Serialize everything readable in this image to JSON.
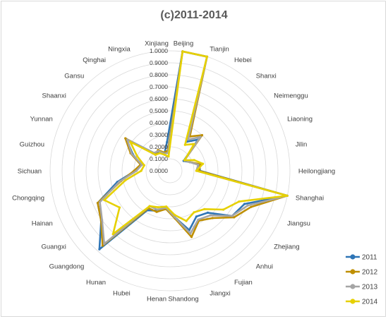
{
  "chart_data": {
    "type": "radar",
    "title": "(c)2011-2014",
    "rlim": [
      0,
      1
    ],
    "ticks": [
      "0.0000",
      "0.1000",
      "0.2000",
      "0.3000",
      "0.4000",
      "0.5000",
      "0.6000",
      "0.7000",
      "0.8000",
      "0.9000",
      "1.0000"
    ],
    "grid": true,
    "legend": "bottom-right",
    "categories": [
      "Beijing",
      "Tianjin",
      "Hebei",
      "Shanxi",
      "Neimenggu",
      "Liaoning",
      "Jilin",
      "Heilongjiang",
      "Shanghai",
      "Jiangsu",
      "Zhejiang",
      "Anhui",
      "Fujian",
      "Jiangxi",
      "Shandong",
      "Henan",
      "Hubei",
      "Hunan",
      "Guangdong",
      "Guangxi",
      "Hainan",
      "Chongqing",
      "Sichuan",
      "Guizhou",
      "Yunnan",
      "Shaanxi",
      "Gansu",
      "Qinghai",
      "Ningxia",
      "Xinjiang"
    ],
    "series": [
      {
        "name": "2011",
        "color": "#2e75b6",
        "values": [
          1.0,
          1.0,
          0.28,
          0.35,
          0.14,
          0.18,
          0.25,
          0.25,
          1.0,
          0.68,
          0.64,
          0.47,
          0.44,
          0.52,
          0.39,
          0.32,
          0.35,
          0.38,
          0.88,
          0.71,
          0.66,
          0.45,
          0.29,
          0.25,
          0.34,
          0.45,
          0.2,
          0.18,
          0.15,
          0.24
        ]
      },
      {
        "name": "2012",
        "color": "#bf8f00",
        "values": [
          1.0,
          1.0,
          0.33,
          0.4,
          0.15,
          0.18,
          0.26,
          0.24,
          1.0,
          0.74,
          0.66,
          0.53,
          0.48,
          0.58,
          0.4,
          0.32,
          0.36,
          0.36,
          0.84,
          0.71,
          0.66,
          0.42,
          0.3,
          0.25,
          0.36,
          0.46,
          0.18,
          0.2,
          0.16,
          0.17
        ]
      },
      {
        "name": "2013",
        "color": "#a5a5a5",
        "values": [
          1.0,
          1.0,
          0.3,
          0.38,
          0.15,
          0.18,
          0.24,
          0.22,
          1.0,
          0.71,
          0.64,
          0.5,
          0.47,
          0.55,
          0.39,
          0.31,
          0.34,
          0.34,
          0.82,
          0.7,
          0.64,
          0.43,
          0.28,
          0.24,
          0.35,
          0.44,
          0.2,
          0.19,
          0.15,
          0.15
        ]
      },
      {
        "name": "2014",
        "color": "#e6d000",
        "values": [
          1.0,
          1.0,
          0.25,
          0.3,
          0.15,
          0.22,
          0.28,
          0.22,
          1.0,
          0.63,
          0.55,
          0.43,
          0.4,
          0.44,
          0.37,
          0.3,
          0.32,
          0.34,
          0.71,
          0.52,
          0.6,
          0.38,
          0.24,
          0.22,
          0.3,
          0.41,
          0.18,
          0.17,
          0.14,
          0.12
        ]
      }
    ]
  }
}
